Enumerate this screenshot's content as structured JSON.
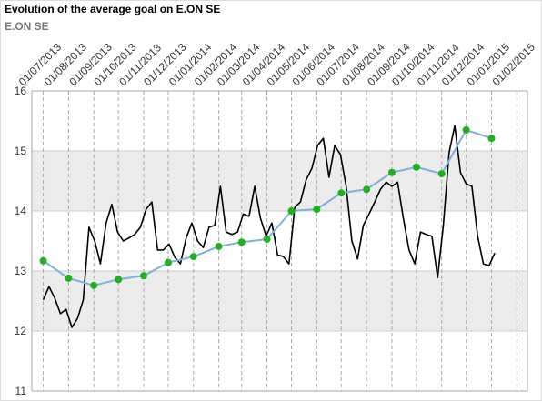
{
  "chart_data": {
    "type": "line",
    "title": "Evolution of the average goal on E.ON SE",
    "subtitle": "E.ON SE",
    "xlim": [
      "2013-06-17",
      "2015-02-14"
    ],
    "xticks": [
      {
        "value": "2013-07-01",
        "label": "01/07/2013"
      },
      {
        "value": "2013-08-01",
        "label": "01/08/2013"
      },
      {
        "value": "2013-09-01",
        "label": "01/09/2013"
      },
      {
        "value": "2013-10-01",
        "label": "01/10/2013"
      },
      {
        "value": "2013-11-01",
        "label": "01/11/2013"
      },
      {
        "value": "2013-12-01",
        "label": "01/12/2013"
      },
      {
        "value": "2014-01-01",
        "label": "01/01/2014"
      },
      {
        "value": "2014-02-01",
        "label": "01/02/2014"
      },
      {
        "value": "2014-03-01",
        "label": "01/03/2014"
      },
      {
        "value": "2014-04-01",
        "label": "01/04/2014"
      },
      {
        "value": "2014-05-01",
        "label": "01/05/2014"
      },
      {
        "value": "2014-06-01",
        "label": "01/06/2014"
      },
      {
        "value": "2014-07-01",
        "label": "01/07/2014"
      },
      {
        "value": "2014-08-01",
        "label": "01/08/2014"
      },
      {
        "value": "2014-09-01",
        "label": "01/09/2014"
      },
      {
        "value": "2014-10-01",
        "label": "01/10/2014"
      },
      {
        "value": "2014-11-01",
        "label": "01/11/2014"
      },
      {
        "value": "2014-12-01",
        "label": "01/12/2014"
      },
      {
        "value": "2015-01-01",
        "label": "01/01/2015"
      },
      {
        "value": "2015-02-01",
        "label": "01/02/2015"
      }
    ],
    "ylim": [
      11,
      16
    ],
    "yticks": [
      11,
      12,
      13,
      14,
      15,
      16
    ],
    "grid": true,
    "band_color": "#ececec",
    "series": [
      {
        "color": "#000000",
        "x": [
          "2013-07-01",
          "2013-07-08",
          "2013-07-15",
          "2013-07-22",
          "2013-07-29",
          "2013-08-05",
          "2013-08-12",
          "2013-08-19",
          "2013-08-26",
          "2013-09-02",
          "2013-09-09",
          "2013-09-16",
          "2013-09-23",
          "2013-09-30",
          "2013-10-07",
          "2013-10-14",
          "2013-10-21",
          "2013-10-28",
          "2013-11-04",
          "2013-11-11",
          "2013-11-18",
          "2013-11-25",
          "2013-12-02",
          "2013-12-09",
          "2013-12-16",
          "2013-12-23",
          "2013-12-30",
          "2014-01-06",
          "2014-01-13",
          "2014-01-20",
          "2014-01-27",
          "2014-02-03",
          "2014-02-10",
          "2014-02-17",
          "2014-02-24",
          "2014-03-03",
          "2014-03-10",
          "2014-03-17",
          "2014-03-24",
          "2014-03-31",
          "2014-04-07",
          "2014-04-14",
          "2014-04-21",
          "2014-04-28",
          "2014-05-05",
          "2014-05-12",
          "2014-05-19",
          "2014-05-26",
          "2014-06-02",
          "2014-06-09",
          "2014-06-16",
          "2014-06-23",
          "2014-06-30",
          "2014-07-07",
          "2014-07-14",
          "2014-07-21",
          "2014-07-28",
          "2014-08-04",
          "2014-08-11",
          "2014-08-18",
          "2014-08-25",
          "2014-09-01",
          "2014-09-08",
          "2014-09-15",
          "2014-09-22",
          "2014-09-29",
          "2014-10-06",
          "2014-10-13",
          "2014-10-20",
          "2014-10-27",
          "2014-11-03",
          "2014-11-10",
          "2014-11-17",
          "2014-11-24",
          "2014-12-01",
          "2014-12-08",
          "2014-12-15",
          "2014-12-22",
          "2014-12-29",
          "2015-01-05"
        ],
        "values": [
          12.52,
          12.74,
          12.55,
          12.29,
          12.36,
          12.06,
          12.21,
          12.52,
          13.73,
          13.5,
          13.12,
          13.8,
          14.11,
          13.65,
          13.5,
          13.55,
          13.61,
          13.73,
          14.03,
          14.15,
          13.35,
          13.35,
          13.45,
          13.23,
          13.12,
          13.55,
          13.8,
          13.5,
          13.39,
          13.73,
          13.76,
          14.41,
          13.65,
          13.61,
          13.65,
          13.95,
          13.91,
          14.41,
          13.88,
          13.58,
          13.8,
          13.27,
          13.24,
          13.12,
          14.06,
          14.15,
          14.52,
          14.71,
          15.09,
          15.21,
          14.56,
          15.09,
          14.94,
          14.41,
          13.5,
          13.2,
          13.76,
          13.95,
          14.15,
          14.36,
          14.48,
          14.41,
          14.48,
          13.88,
          13.35,
          13.12,
          13.65,
          13.61,
          13.58,
          12.89,
          13.76,
          14.97,
          15.42,
          14.64,
          14.45,
          14.41,
          13.58,
          13.12,
          13.09,
          13.3
        ]
      },
      {
        "color": "#7fb0e0",
        "marker_color": "#1db31d",
        "x": [
          "2013-07-01",
          "2013-08-01",
          "2013-09-01",
          "2013-10-01",
          "2013-11-01",
          "2013-12-01",
          "2014-01-01",
          "2014-02-01",
          "2014-03-01",
          "2014-04-01",
          "2014-05-01",
          "2014-06-01",
          "2014-07-01",
          "2014-08-01",
          "2014-09-01",
          "2014-10-01",
          "2014-11-01",
          "2014-12-01",
          "2015-01-01"
        ],
        "values": [
          13.17,
          12.88,
          12.76,
          12.86,
          12.92,
          13.14,
          13.24,
          13.41,
          13.48,
          13.53,
          14.0,
          14.03,
          14.3,
          14.36,
          14.64,
          14.73,
          14.62,
          15.35,
          15.21
        ]
      }
    ]
  }
}
